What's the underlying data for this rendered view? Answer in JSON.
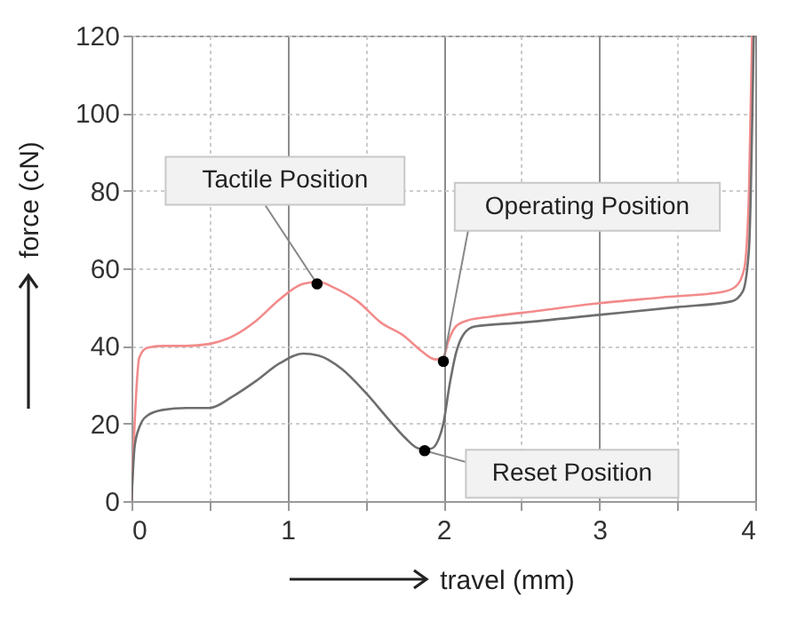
{
  "chart_data": {
    "type": "line",
    "xlabel": "travel (mm)",
    "ylabel": "force (cN)",
    "xlim": [
      0,
      4
    ],
    "ylim": [
      0,
      120
    ],
    "xticks": [
      0,
      {
        "value": 0.5,
        "label": null
      },
      1,
      {
        "value": 1.5,
        "label": null
      },
      2,
      {
        "value": 2.5,
        "label": null
      },
      3,
      {
        "value": 3.5,
        "label": null
      },
      4
    ],
    "yticks": [
      0,
      20,
      40,
      60,
      80,
      100,
      120
    ],
    "grid": true,
    "line_style": "solid",
    "series": [
      {
        "color": "#f28b8b",
        "x": [
          0,
          0.02,
          0.05,
          0.1,
          0.2,
          0.35,
          0.5,
          0.65,
          0.8,
          0.95,
          1.1,
          1.2,
          1.3,
          1.45,
          1.6,
          1.75,
          1.85,
          1.95,
          2.0,
          2.03,
          2.08,
          2.15,
          2.3,
          2.6,
          3.0,
          3.4,
          3.8,
          3.88,
          3.93,
          3.96,
          3.98
        ],
        "values": [
          0,
          20,
          37,
          39.5,
          40,
          40,
          40.5,
          42.5,
          46.5,
          52,
          56,
          56.5,
          55,
          51.5,
          46,
          42.5,
          39,
          36.5,
          37,
          41,
          45,
          46.5,
          47.5,
          49,
          51,
          52.5,
          54,
          55.5,
          60,
          80,
          120
        ]
      },
      {
        "color": "#6e6e6e",
        "x": [
          0,
          0.02,
          0.05,
          0.1,
          0.2,
          0.35,
          0.5,
          0.65,
          0.8,
          0.95,
          1.1,
          1.2,
          1.35,
          1.5,
          1.65,
          1.75,
          1.85,
          1.92,
          1.97,
          2.0,
          2.04,
          2.08,
          2.13,
          2.2,
          2.5,
          3.0,
          3.5,
          3.85,
          3.92,
          3.96,
          3.99
        ],
        "values": [
          0,
          14,
          19,
          22,
          23.5,
          24,
          24,
          27,
          31,
          35.5,
          38,
          37.5,
          34,
          28,
          21,
          16.5,
          13.5,
          13.5,
          16,
          20,
          30,
          38,
          43,
          45,
          46,
          48,
          50,
          51.5,
          54,
          65,
          120
        ]
      }
    ],
    "annotations": [
      {
        "text": "Tactile Position",
        "x": 1.19,
        "y": 56
      },
      {
        "text": "Operating Position",
        "x": 2.0,
        "y": 36
      },
      {
        "text": "Reset Position",
        "x": 1.88,
        "y": 13
      }
    ]
  }
}
